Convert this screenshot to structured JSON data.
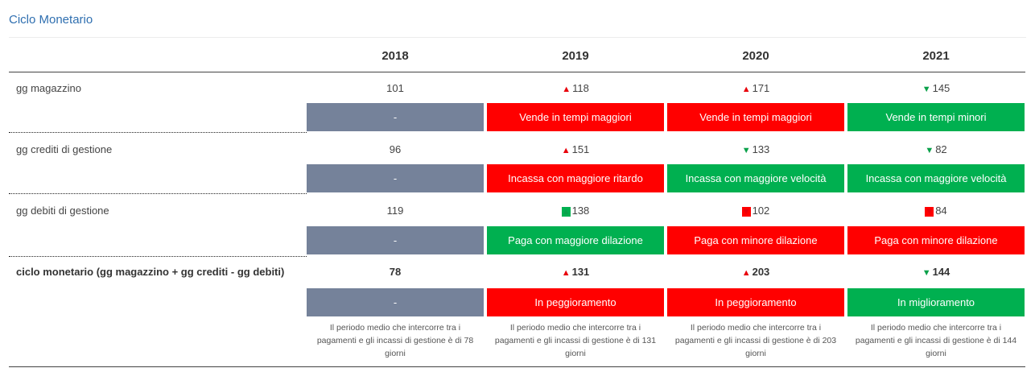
{
  "title": "Ciclo Monetario",
  "years": [
    "2018",
    "2019",
    "2020",
    "2021"
  ],
  "rows": [
    {
      "label": "gg magazzino",
      "values": [
        "101",
        "118",
        "171",
        "145"
      ],
      "arrows": [
        "",
        "▲",
        "▲",
        "▼"
      ],
      "statuses": [
        "-",
        "Vende in tempi maggiori",
        "Vende in tempi maggiori",
        "Vende in tempi minori"
      ]
    },
    {
      "label": "gg crediti di gestione",
      "values": [
        "96",
        "151",
        "133",
        "82"
      ],
      "arrows": [
        "",
        "▲",
        "▼",
        "▼"
      ],
      "statuses": [
        "-",
        "Incassa con maggiore ritardo",
        "Incassa con maggiore velocità",
        "Incassa con maggiore velocità"
      ]
    },
    {
      "label": "gg debiti di gestione",
      "values": [
        "119",
        "138",
        "102",
        "84"
      ],
      "arrows": [
        "",
        "▲",
        "▼",
        "▼"
      ],
      "statuses": [
        "-",
        "Paga con maggiore dilazione",
        "Paga con minore dilazione",
        "Paga con minore dilazione"
      ]
    },
    {
      "label": "ciclo monetario (gg magazzino + gg crediti - gg debiti)",
      "values": [
        "78",
        "131",
        "203",
        "144"
      ],
      "arrows": [
        "",
        "▲",
        "▲",
        "▼"
      ],
      "statuses": [
        "-",
        "In peggioramento",
        "In peggioramento",
        "In miglioramento"
      ]
    }
  ],
  "notes": [
    "Il periodo medio che intercorre tra i pagamenti e gli incassi di gestione è di 78 giorni",
    "Il periodo medio che intercorre tra i pagamenti e gli incassi di gestione è di 131 giorni",
    "Il periodo medio che intercorre tra i pagamenti e gli incassi di gestione è di 203 giorni",
    "Il periodo medio che intercorre tra i pagamenti e gli incassi di gestione è di 144 giorni"
  ],
  "colors": {
    "title": "#2f6fb0",
    "neutral": "#75829a",
    "negative": "#ff0000",
    "positive": "#00b050"
  }
}
